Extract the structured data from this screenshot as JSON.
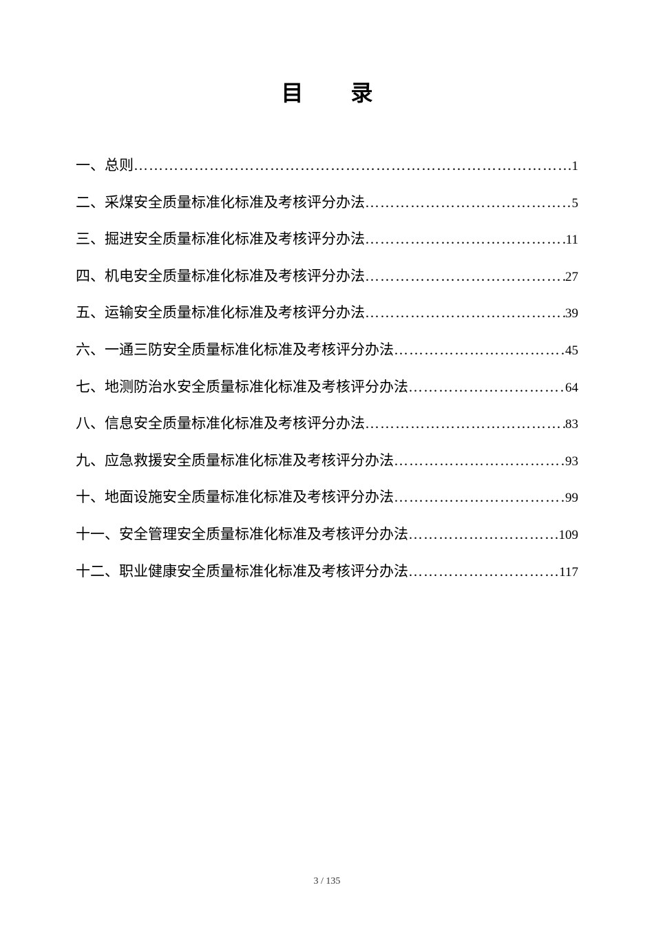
{
  "title": "目 录",
  "entries": [
    {
      "label": "一、总则",
      "page": "1"
    },
    {
      "label": "二、采煤安全质量标准化标准及考核评分办法",
      "page": "5"
    },
    {
      "label": "三、掘进安全质量标准化标准及考核评分办法",
      "page": "11"
    },
    {
      "label": "四、机电安全质量标准化标准及考核评分办法",
      "page": "27"
    },
    {
      "label": "五、运输安全质量标准化标准及考核评分办法",
      "page": "39"
    },
    {
      "label": "六、一通三防安全质量标准化标准及考核评分办法",
      "page": "45"
    },
    {
      "label": "七、地测防治水安全质量标准化标准及考核评分办法",
      "page": "64"
    },
    {
      "label": "八、信息安全质量标准化标准及考核评分办法",
      "page": "83"
    },
    {
      "label": "九、应急救援安全质量标准化标准及考核评分办法",
      "page": "93"
    },
    {
      "label": "十、地面设施安全质量标准化标准及考核评分办法",
      "page": "99"
    },
    {
      "label": "十一、安全管理安全质量标准化标准及考核评分办法",
      "page": "109"
    },
    {
      "label": "十二、职业健康安全质量标准化标准及考核评分办法",
      "page": "117"
    }
  ],
  "footer": "3 / 135",
  "colors": {
    "background": "#ffffff",
    "text": "#000000",
    "footer_text": "#333333"
  },
  "typography": {
    "title_fontsize": 32,
    "entry_fontsize": 21,
    "page_fontsize": 19,
    "footer_fontsize": 14,
    "title_font": "SimHei",
    "body_font": "SimSun"
  }
}
